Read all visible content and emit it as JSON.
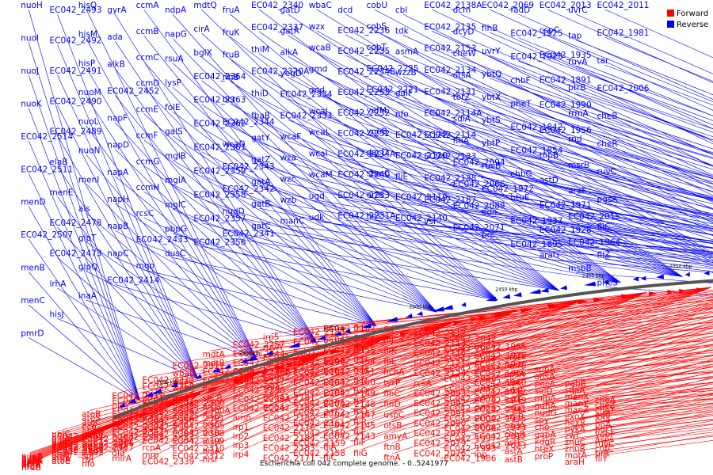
{
  "caption": "Escherichia coli 042 complete genome. - 0..5241977",
  "legend": {
    "forward_label": "Forward",
    "reverse_label": "Reverse",
    "forward_color": "#ff0000",
    "reverse_color": "#0000ff"
  },
  "backbone_color": "#555555",
  "kbp_ticks": [
    {
      "label": "2650 kbp",
      "pos": 2650
    },
    {
      "label": "2600 kbp",
      "pos": 2600
    },
    {
      "label": "2550 kbp",
      "pos": 2550
    },
    {
      "label": "2500 kbp",
      "pos": 2500
    },
    {
      "label": "2450 kbp",
      "pos": 2450
    },
    {
      "label": "2400 kbp",
      "pos": 2400
    },
    {
      "label": "2350 kbp",
      "pos": 2350
    },
    {
      "label": "2300 kbp",
      "pos": 2300
    },
    {
      "label": "2250 kbp",
      "pos": 2250
    },
    {
      "label": "2200 kbp",
      "pos": 2200
    },
    {
      "label": "2150 kbp",
      "pos": 2150
    },
    {
      "label": "2100 kbp",
      "pos": 2100
    },
    {
      "label": "2050 kbp",
      "pos": 2050
    },
    {
      "label": "2000 kbp",
      "pos": 2000
    },
    {
      "label": "1950 kbp",
      "pos": 1950
    },
    {
      "label": "1900 kbp",
      "pos": 1900
    }
  ],
  "reverse_genes": [
    "nuoH",
    "nuoI",
    "nuoJ",
    "nuoK",
    "EC042_2514",
    "EC042_2511",
    "menD",
    "EC042_2507",
    "menB",
    "menC",
    "pmrD",
    "EC042_2493",
    "EC042_2492",
    "EC042_2491",
    "EC042_2490",
    "EC042_2489",
    "elaB",
    "menE",
    "EC042_2478",
    "EC042_2473",
    "lrhA",
    "hisJ",
    "hisQ",
    "hisM",
    "hisP",
    "nuoM",
    "nuoL",
    "nuoN",
    "menI",
    "ais",
    "glpT",
    "glpQ",
    "inaA",
    "gyrA",
    "ada",
    "alkB",
    "EC042_2452",
    "napF",
    "napD",
    "napA",
    "napH",
    "napB",
    "napC",
    "EC042_2414",
    "ccmA",
    "ccmB",
    "ccmC",
    "ccmD",
    "ccmE",
    "ccmF",
    "ccmG",
    "ccmH",
    "rcsC",
    "EC042_2433",
    "mqo",
    "ndpA",
    "napG",
    "rsuA",
    "lysP",
    "folE",
    "galS",
    "mglB",
    "mglA",
    "mglC",
    "pbpG",
    "dusC",
    "mdtQ",
    "cirA",
    "bglX",
    "EC042_2364",
    "EC042_2363",
    "EC042_2362",
    "EC042_2361",
    "EC042_2359",
    "EC042_2358",
    "EC042_2357",
    "EC042_2356",
    "fruA",
    "fruK",
    "fruB",
    "rihB",
    "bcr",
    "EC042_2344",
    "wcaD",
    "EC042_2343",
    "EC042_2342",
    "nudD",
    "EC042_2341",
    "EC042_2340",
    "EC042_2337",
    "thiM",
    "EC042_2320A",
    "thiD",
    "fbaB",
    "gatY",
    "gatZ",
    "gatA",
    "gatB",
    "gatC",
    "gatD",
    "gatR",
    "alkA",
    "yegD",
    "EC042_2334",
    "EC042_2333",
    "wcaF",
    "wza",
    "wzc",
    "wzb",
    "manC",
    "wbaC",
    "wzx",
    "wcaB",
    "gmd",
    "gnd",
    "wcaJ",
    "wcaL",
    "wcaI",
    "wcaM",
    "ugd",
    "udk",
    "dcd",
    "EC042_2236",
    "EC042_2235",
    "EC042_2234B",
    "EC042_2253",
    "EC042_2232",
    "EC042_2252",
    "EC042_2234A",
    "EC042_2240",
    "EC042_2233",
    "EC042_2231A",
    "cobU",
    "cobS",
    "cobT",
    "EC042_2225",
    "EC042_2221",
    "yefM",
    "yoeB",
    "dacD",
    "sbmC",
    "erfK",
    "hns",
    "cbl",
    "tdk",
    "asmA",
    "wzzB",
    "galF",
    "nfo",
    "EC042_2122",
    "EC042_2120",
    "fliE",
    "EC042_2119",
    "EC042_2140",
    "EC042_2138A",
    "EC042_2135",
    "EC042_2153",
    "EC042_2134",
    "EC042_2131",
    "EC042_2114A",
    "EC042_2114",
    "EC042_2133",
    "EC042_2138",
    "EC042_2187",
    "vsr",
    "dcm",
    "dcyD",
    "cheW",
    "otsA",
    "torZ",
    "sdiA",
    "flhA",
    "EC042_2094",
    "EC042_2066",
    "EC042_2089",
    "EC042_2071",
    "EC042_2069",
    "flhB",
    "uvrY",
    "ybtQ",
    "ybtX",
    "ybtS",
    "ybtP",
    "ruvB",
    "EC042_1972",
    "eda",
    "prc",
    "fadD",
    "EC042_1925",
    "EC042_1923",
    "chbF",
    "pheT",
    "EC042_1842",
    "EC042_1854",
    "chbG",
    "btuE",
    "EC042_1937",
    "EC042_1895",
    "EC042_2013",
    "cspC",
    "EC042_1935",
    "EC042_1891",
    "EC042_1990",
    "EC042_1956",
    "topB",
    "astD",
    "EC042_1971",
    "EC042_1928",
    "araG",
    "uvrC",
    "tap",
    "ruvA",
    "ptrB",
    "rrmA",
    "rnd",
    "msrB",
    "araF",
    "EC042_2015",
    "EC042_1964",
    "msbB",
    "EC042_2011",
    "EC042_1981",
    "tar",
    "EC042_2006",
    "cheB",
    "cheR",
    "ruvC",
    "pgsA",
    "fliC",
    "fliZ",
    "pheS"
  ],
  "forward_genes": [
    "nuoG",
    "nuoF",
    "nuoE",
    "nuoC",
    "nuoB",
    "nuoA",
    "arnB",
    "arnC",
    "arnA",
    "arnT",
    "rnz",
    "nrdA",
    "nrdB",
    "ubiG",
    "EC042_2487",
    "glpA",
    "glpB",
    "glpC",
    "EC042_2488",
    "EC042_2499",
    "EC042_2501",
    "EC042_2502",
    "rcsB",
    "atoD",
    "atoA",
    "atoE",
    "atoB",
    "atoS",
    "atoC",
    "eco",
    "apbE",
    "ompC",
    "EC042_2457",
    "EC042_2466",
    "EC042_2467",
    "narP",
    "spr",
    "rtn",
    "nfo",
    "EC042_2411",
    "EC042_2405",
    "plyY",
    "EC042_2390",
    "EC042_2391",
    "EC042_2393",
    "EC042_2394",
    "EC042_2397",
    "EC042_2398",
    "sanA",
    "cdd",
    "dld",
    "mlrA",
    "EC042_2373",
    "EC042_2369",
    "metG",
    "EC042_2347",
    "EC042_2348",
    "EC042_2349",
    "EC042_2350",
    "EC042_2351",
    "EC042_2353",
    "EC042_2354",
    "rcnA",
    "mrp",
    "EC042_2339",
    "EC042_2311",
    "wbaD",
    "wcaL",
    "wcaK",
    "wcaC",
    "EC042_2300",
    "EC042_2300A",
    "EC042_2301",
    "EC042_2305",
    "EC042_2308",
    "EC042_2309",
    "EC042_2310",
    "EC042_2312",
    "mdtA",
    "mdtB",
    "EC042_2239",
    "EC042_2241",
    "flu",
    "sbcB",
    "hisG",
    "hisD",
    "hisC",
    "hisB",
    "hisH",
    "hisA",
    "hisI",
    "EC042_2257",
    "EC042_2244",
    "EC042_2234",
    "EC042_2236A",
    "EC042_2237",
    "EC042_2238",
    "EC042_2238A",
    "EC042_2224",
    "amn",
    "irp1",
    "irp2",
    "irp3",
    "irp4",
    "irp5",
    "ruvA",
    "EC042_2243",
    "EC042_2219",
    "EC042_2220",
    "shiA",
    "EC042_2181",
    "EC042_2182",
    "EC042_2180",
    "EC042_2176",
    "EC042_2184",
    "EC042_2183",
    "EC042_2171",
    "EC042_2185",
    "EC042_2189",
    "hokD",
    "EC042_2190",
    "EC042_2191",
    "EC042_2193",
    "EC042_2195",
    "EC042_2196",
    "EC042_2162",
    "EC042_2161",
    "EC042_2160",
    "EC042_2159",
    "EC042_2158",
    "EC042_2157",
    "EC042_2156",
    "EC042_2155",
    "EC042_2154",
    "EC042_2151",
    "EC042_2150",
    "EC042_2149",
    "EC042_2148",
    "EC042_2147",
    "EC042_2145",
    "EC042_2143",
    "fliA",
    "fliC",
    "fliD",
    "fliS",
    "fliT",
    "fliH",
    "fliM",
    "fliN",
    "fliO",
    "fliP",
    "fliQ",
    "fliR",
    "fliE",
    "fliF",
    "fliG",
    "fliI",
    "fliJ",
    "fliK",
    "fliL",
    "hchA",
    "tyrP",
    "flhC",
    "flhD",
    "uspC",
    "otsB",
    "amyA",
    "ftnB",
    "ftnA",
    "EC042_2112",
    "EC042_2113",
    "EC042_2116",
    "EC042_2121",
    "EC042_2124",
    "rcsA",
    "EC042_2093",
    "EC042_2092",
    "EC042_2091",
    "EC042_2090",
    "EC042_2078",
    "EC042_2079",
    "EC042_2076",
    "EC042_2042",
    "EC042_2067",
    "EC042_2034",
    "EC042_2035",
    "EC042_2036",
    "EC042_2037",
    "EC042_2038",
    "EC042_2029",
    "EC042_2000",
    "EC042_2008",
    "EC042_1997",
    "EC042_1993",
    "EC042_1986",
    "EC042_1985",
    "EC042_1978",
    "EC042_1976",
    "EC042_1966",
    "EC042_1960",
    "EC042_1952",
    "EC042_1949",
    "EC042_1941",
    "EC042_1975",
    "EC042_1973",
    "EC042_2012",
    "EC042_2023",
    "lpp",
    "aroD",
    "fadK",
    "ppsA",
    "nlpC",
    "pfkB",
    "katE",
    "chbC",
    "arpB",
    "cedA",
    "chbR",
    "astE",
    "astA",
    "astB",
    "sppA",
    "ansA",
    "pncA",
    "selD",
    "mipA",
    "gdhA",
    "nudG",
    "spy",
    "cho",
    "gapA",
    "kdgR",
    "htpX",
    "proP",
    "pabB",
    "sdaA",
    "manX",
    "manY",
    "manZ",
    "exoX",
    "hexR",
    "pykA",
    "zwf",
    "znuC",
    "znuB",
    "motA",
    "araH",
    "cheA",
    "cheZ",
    "cheY",
    "edd",
    "eda",
    "ppA",
    "purT",
    "yebF",
    "asps",
    "ruvC",
    "cutC",
    "tirR",
    "fliY"
  ]
}
